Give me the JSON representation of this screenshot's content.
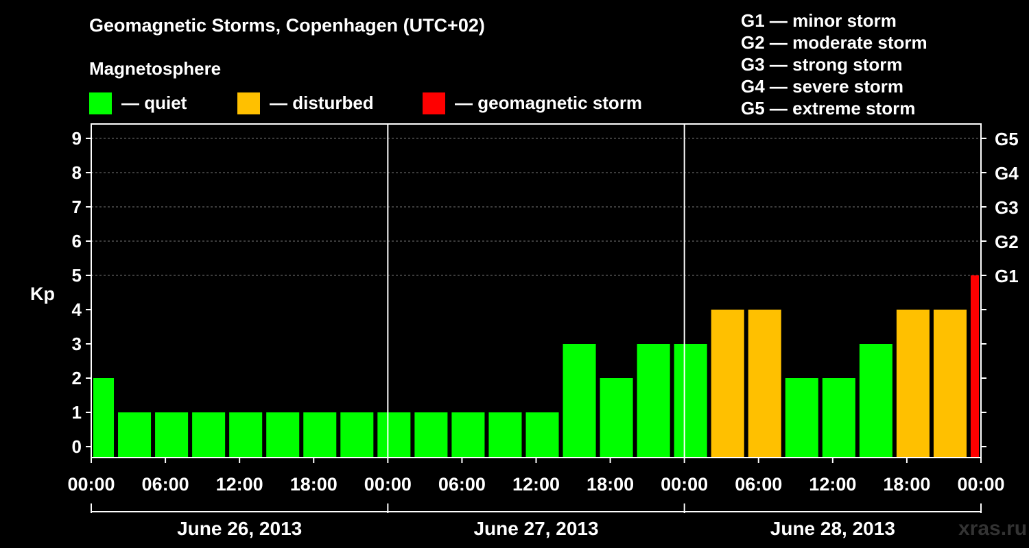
{
  "title": "Geomagnetic Storms, Copenhagen (UTC+02)",
  "subtitle": "Magnetosphere",
  "watermark": "xras.ru",
  "legend": [
    {
      "label": "— quiet",
      "color": "#00ff00"
    },
    {
      "label": "— disturbed",
      "color": "#ffc000"
    },
    {
      "label": "— geomagnetic storm",
      "color": "#ff0000"
    }
  ],
  "g_scale": [
    "G1 — minor storm",
    "G2 — moderate storm",
    "G3 — strong storm",
    "G4 — severe storm",
    "G5 — extreme storm"
  ],
  "chart_data": {
    "type": "bar",
    "title": "Geomagnetic Storms, Copenhagen (UTC+02)",
    "ylabel": "Kp",
    "xlabel": "",
    "ylim": [
      0,
      9
    ],
    "y_ticks": [
      "0",
      "1",
      "2",
      "3",
      "4",
      "5",
      "6",
      "7",
      "8",
      "9"
    ],
    "right_axis_labels": [
      {
        "kp": 5,
        "label": "G1"
      },
      {
        "kp": 6,
        "label": "G2"
      },
      {
        "kp": 7,
        "label": "G3"
      },
      {
        "kp": 8,
        "label": "G4"
      },
      {
        "kp": 9,
        "label": "G5"
      }
    ],
    "x_range_hours": [
      0,
      72
    ],
    "x_tick_labels": [
      "00:00",
      "06:00",
      "12:00",
      "18:00",
      "00:00",
      "06:00",
      "12:00",
      "18:00",
      "00:00",
      "06:00",
      "12:00",
      "18:00",
      "00:00"
    ],
    "days": [
      "June 26, 2013",
      "June 27, 2013",
      "June 28, 2013"
    ],
    "status_colors": {
      "quiet": "#00ff00",
      "disturbed": "#ffc000",
      "storm": "#ff0000"
    },
    "bars": [
      {
        "start_hour": 0,
        "end_hour": 2,
        "kp": 2
      },
      {
        "start_hour": 2,
        "end_hour": 5,
        "kp": 1
      },
      {
        "start_hour": 5,
        "end_hour": 8,
        "kp": 1
      },
      {
        "start_hour": 8,
        "end_hour": 11,
        "kp": 1
      },
      {
        "start_hour": 11,
        "end_hour": 14,
        "kp": 1
      },
      {
        "start_hour": 14,
        "end_hour": 17,
        "kp": 1
      },
      {
        "start_hour": 17,
        "end_hour": 20,
        "kp": 1
      },
      {
        "start_hour": 20,
        "end_hour": 23,
        "kp": 1
      },
      {
        "start_hour": 23,
        "end_hour": 26,
        "kp": 1
      },
      {
        "start_hour": 26,
        "end_hour": 29,
        "kp": 1
      },
      {
        "start_hour": 29,
        "end_hour": 32,
        "kp": 1
      },
      {
        "start_hour": 32,
        "end_hour": 35,
        "kp": 1
      },
      {
        "start_hour": 35,
        "end_hour": 38,
        "kp": 1
      },
      {
        "start_hour": 38,
        "end_hour": 41,
        "kp": 3
      },
      {
        "start_hour": 41,
        "end_hour": 44,
        "kp": 2
      },
      {
        "start_hour": 44,
        "end_hour": 47,
        "kp": 3
      },
      {
        "start_hour": 47,
        "end_hour": 50,
        "kp": 3
      },
      {
        "start_hour": 50,
        "end_hour": 53,
        "kp": 4
      },
      {
        "start_hour": 53,
        "end_hour": 56,
        "kp": 4
      },
      {
        "start_hour": 56,
        "end_hour": 59,
        "kp": 2
      },
      {
        "start_hour": 59,
        "end_hour": 62,
        "kp": 2
      },
      {
        "start_hour": 62,
        "end_hour": 65,
        "kp": 3
      },
      {
        "start_hour": 65,
        "end_hour": 68,
        "kp": 4
      },
      {
        "start_hour": 68,
        "end_hour": 71,
        "kp": 4
      },
      {
        "start_hour": 71,
        "end_hour": 72,
        "kp": 5
      }
    ]
  }
}
